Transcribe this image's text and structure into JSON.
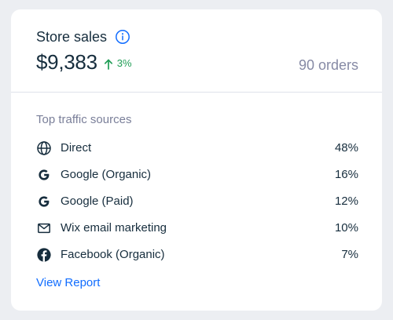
{
  "card": {
    "title": "Store sales",
    "title_icon": "info-icon",
    "amount": "$9,383",
    "trend": {
      "direction": "up",
      "icon": "arrow-up-icon",
      "value": "3%",
      "color": "#1f9d55"
    },
    "orders": "90 orders"
  },
  "traffic": {
    "label": "Top traffic sources",
    "sources": [
      {
        "icon": "globe-icon",
        "label": "Direct",
        "percent": "48%"
      },
      {
        "icon": "google-icon",
        "label": "Google (Organic)",
        "percent": "16%"
      },
      {
        "icon": "google-icon",
        "label": "Google (Paid)",
        "percent": "12%"
      },
      {
        "icon": "envelope-icon",
        "label": "Wix email marketing",
        "percent": "10%"
      },
      {
        "icon": "facebook-icon",
        "label": "Facebook (Organic)",
        "percent": "7%"
      }
    ]
  },
  "footer": {
    "view_report_label": "View Report"
  },
  "colors": {
    "accent": "#116dff",
    "text": "#162d3d",
    "muted": "#868aa5",
    "background": "#eceef2",
    "positive": "#1f9d55"
  }
}
